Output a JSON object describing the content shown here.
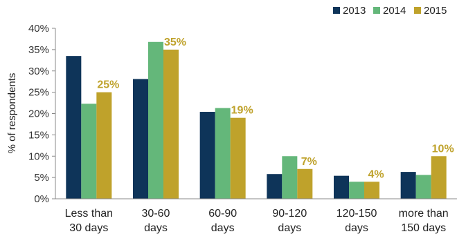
{
  "chart_data": {
    "type": "bar",
    "ylabel": "% of respondents",
    "ylim": [
      0,
      40
    ],
    "y_ticks": [
      "0%",
      "5%",
      "10%",
      "15%",
      "20%",
      "25%",
      "30%",
      "35%",
      "40%"
    ],
    "categories": [
      [
        "Less than",
        "30 days"
      ],
      [
        "30-60",
        "days"
      ],
      [
        "60-90",
        "days"
      ],
      [
        "90-120",
        "days"
      ],
      [
        "120-150",
        "days"
      ],
      [
        "more than",
        "150 days"
      ]
    ],
    "series": [
      {
        "name": "2013",
        "color": "#0e3459",
        "values": [
          33.5,
          28.1,
          20.4,
          5.8,
          5.4,
          6.3
        ]
      },
      {
        "name": "2014",
        "color": "#64b77a",
        "values": [
          22.3,
          36.8,
          21.3,
          10.0,
          4.0,
          5.6
        ]
      },
      {
        "name": "2015",
        "color": "#bfa22b",
        "values": [
          25,
          35,
          19,
          7,
          4,
          10
        ]
      }
    ],
    "data_labels": {
      "series": "2015",
      "texts": [
        "25%",
        "35%",
        "19%",
        "7%",
        "4%",
        "10%"
      ],
      "color": "#bfa22b"
    },
    "grid": false,
    "legend_position": "top-right"
  }
}
